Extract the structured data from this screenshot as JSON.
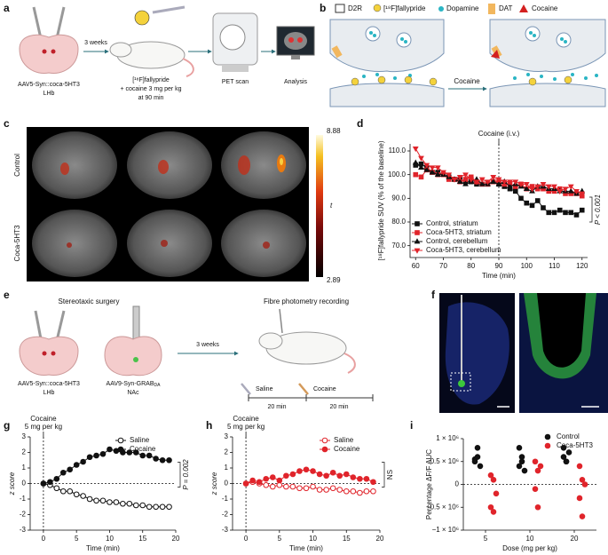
{
  "figure": {
    "panel_labels": [
      "a",
      "b",
      "c",
      "d",
      "e",
      "f",
      "g",
      "h",
      "i"
    ]
  },
  "panel_a": {
    "step": "3 weeks",
    "virus": "AAV5-Syn::coca-5HT3",
    "region": "LHb",
    "tracer": "[¹⁸F]fallypride",
    "dose": "+ cocaine 3 mg per kg",
    "timing": "at 90 min",
    "scan": "PET scan",
    "analysis": "Analysis"
  },
  "panel_b": {
    "legend": [
      "D2R",
      "[¹⁸F]fallypride",
      "Dopamine",
      "DAT",
      "Cocaine"
    ],
    "arrow": "Cocaine"
  },
  "panel_c": {
    "rows": [
      "Control",
      "Coca-5HT3"
    ],
    "colorbar_max": "8.88",
    "colorbar_min": "2.89",
    "colorbar_label": "t"
  },
  "panel_e": {
    "surgery": "Stereotaxic surgery",
    "recording": "Fibre photometry recording",
    "step": "3 weeks",
    "virus1": "AAV5-Syn::coca-5HT3",
    "region1": "LHb",
    "virus2": "AAV9-Syn-GRAB",
    "virus2_sub": "DA",
    "region2": "NAc",
    "injections": [
      "Saline",
      "Cocaine"
    ],
    "durations": [
      "20 min",
      "20 min"
    ]
  },
  "chart_data": [
    {
      "type": "line",
      "xlabel": "Time (min)",
      "ylabel": "[¹⁸F]fallypride SUV (% of the baseline)",
      "x": [
        60,
        62,
        64,
        66,
        68,
        70,
        72,
        74,
        76,
        78,
        80,
        82,
        84,
        86,
        88,
        90,
        92,
        94,
        96,
        98,
        100,
        102,
        104,
        106,
        108,
        110,
        112,
        114,
        116,
        118,
        120
      ],
      "xlim": [
        58,
        122
      ],
      "xticks": [
        60,
        70,
        80,
        90,
        100,
        110,
        120
      ],
      "ylim": [
        65,
        113
      ],
      "yticks": [
        {
          "value": 70,
          "label": "70.0"
        },
        {
          "value": 80,
          "label": "80.0"
        },
        {
          "value": 90,
          "label": "90.0"
        },
        {
          "value": 100,
          "label": "100.0"
        },
        {
          "value": 110,
          "label": "110.0"
        }
      ],
      "vline": 90,
      "vline_label": [
        "Cocaine (i.v.)"
      ],
      "stat_label": "P < 0.001",
      "legend": "lower left",
      "series": [
        {
          "name": "Control, striatum",
          "color": "#111111",
          "marker": "square",
          "filled": true,
          "values": [
            104,
            104.5,
            103,
            101,
            101,
            100,
            99,
            98,
            98,
            97,
            97,
            96,
            96,
            96,
            97,
            96,
            95,
            94,
            93,
            90,
            88,
            87,
            89,
            86,
            84,
            84,
            85,
            84,
            84,
            83,
            85
          ]
        },
        {
          "name": "Coca-5HT3, striatum",
          "color": "#e0242b",
          "marker": "square",
          "filled": true,
          "values": [
            100,
            99,
            102,
            101,
            100,
            100,
            98,
            98,
            97,
            98,
            99,
            97,
            96,
            96,
            97,
            97,
            96,
            96,
            95,
            96,
            94,
            95,
            94,
            94,
            93,
            93,
            94,
            92,
            92,
            92,
            91
          ]
        },
        {
          "name": "Control, cerebellum",
          "color": "#111111",
          "marker": "triangle",
          "filled": true,
          "values": [
            105,
            103,
            102,
            101,
            100,
            100,
            99,
            98,
            97,
            96,
            97,
            98,
            96,
            96,
            97,
            96,
            97,
            95,
            96,
            95,
            94,
            93,
            95,
            95,
            94,
            94,
            93,
            93,
            93,
            92,
            93
          ]
        },
        {
          "name": "Coca-5HT3, cerebellum",
          "color": "#e0242b",
          "marker": "triangle-down",
          "filled": true,
          "values": [
            111,
            107,
            104,
            103,
            103,
            101,
            100,
            98,
            99,
            100,
            98,
            97,
            98,
            97,
            99,
            98,
            97,
            97,
            97,
            96,
            96,
            94,
            95,
            96,
            95,
            95,
            93,
            94,
            95,
            93,
            92
          ]
        }
      ]
    },
    {
      "type": "line",
      "xlabel": "Time (min)",
      "ylabel": "z score",
      "x": [
        0,
        1,
        2,
        3,
        4,
        5,
        6,
        7,
        8,
        9,
        10,
        11,
        12,
        13,
        14,
        15,
        16,
        17,
        18,
        19
      ],
      "xlim": [
        -2,
        20
      ],
      "xticks": [
        0,
        5,
        10,
        15,
        20
      ],
      "ylim": [
        -3,
        3
      ],
      "yticks": [
        -3,
        -2,
        -1,
        0,
        1,
        2,
        3
      ],
      "hline": 0,
      "vline": 0,
      "vline_label": [
        "Cocaine",
        "5 mg per kg"
      ],
      "stat_label": "P = 0.002",
      "legend": "upper right",
      "series": [
        {
          "name": "Saline",
          "color": "#111111",
          "marker": "circle",
          "filled": false,
          "values": [
            0,
            -0.1,
            -0.3,
            -0.5,
            -0.5,
            -0.7,
            -0.8,
            -1.0,
            -1.1,
            -1.1,
            -1.2,
            -1.2,
            -1.3,
            -1.3,
            -1.4,
            -1.4,
            -1.5,
            -1.5,
            -1.5,
            -1.5
          ]
        },
        {
          "name": "Cocaine",
          "color": "#111111",
          "marker": "circle",
          "filled": true,
          "values": [
            0,
            0.1,
            0.3,
            0.7,
            0.9,
            1.2,
            1.4,
            1.7,
            1.8,
            1.9,
            2.2,
            2.1,
            2.0,
            2.0,
            2.0,
            1.8,
            1.8,
            1.6,
            1.5,
            1.5
          ]
        }
      ]
    },
    {
      "type": "line",
      "xlabel": "Time (min)",
      "ylabel": "z score",
      "x": [
        0,
        1,
        2,
        3,
        4,
        5,
        6,
        7,
        8,
        9,
        10,
        11,
        12,
        13,
        14,
        15,
        16,
        17,
        18,
        19
      ],
      "xlim": [
        -2,
        20
      ],
      "xticks": [
        0,
        5,
        10,
        15,
        20
      ],
      "ylim": [
        -3,
        3
      ],
      "yticks": [
        -3,
        -2,
        -1,
        0,
        1,
        2,
        3
      ],
      "hline": 0,
      "vline": 0,
      "vline_label": [
        "Cocaine",
        "5 mg per kg"
      ],
      "stat_label": "NS",
      "legend": "upper right",
      "series": [
        {
          "name": "Saline",
          "color": "#e0242b",
          "marker": "circle",
          "filled": false,
          "values": [
            0,
            0.1,
            0.0,
            -0.1,
            -0.2,
            -0.1,
            -0.2,
            -0.2,
            -0.3,
            -0.3,
            -0.2,
            -0.4,
            -0.4,
            -0.3,
            -0.4,
            -0.5,
            -0.5,
            -0.6,
            -0.5,
            -0.5
          ]
        },
        {
          "name": "Cocaine",
          "color": "#e0242b",
          "marker": "circle",
          "filled": true,
          "values": [
            0,
            0.2,
            0.1,
            0.3,
            0.4,
            0.2,
            0.5,
            0.6,
            0.8,
            0.9,
            0.8,
            0.6,
            0.5,
            0.7,
            0.5,
            0.6,
            0.4,
            0.3,
            0.3,
            0.1
          ]
        }
      ]
    },
    {
      "type": "scatter",
      "xlabel": "Dose (mg per kg)",
      "ylabel": "Percentage ΔF/F AUC",
      "categories": [
        5,
        10,
        20
      ],
      "ylim": [
        -1000000,
        1000000
      ],
      "yticks": [
        {
          "value": -1000000,
          "label": "−1 × 10⁶"
        },
        {
          "value": -500000,
          "label": "−0.5 × 10⁶"
        },
        0,
        {
          "value": 500000,
          "label": "0.5 × 10⁶"
        },
        {
          "value": 1000000,
          "label": "1 × 10⁶"
        }
      ],
      "hline": 0,
      "legend": "upper right",
      "series": [
        {
          "name": "Control",
          "color": "#111111",
          "marker": "circle",
          "filled": true,
          "values": [
            [
              550000,
              600000,
              400000,
              500000,
              800000
            ],
            [
              400000,
              500000,
              300000,
              800000,
              600000
            ],
            [
              600000,
              500000,
              700000,
              800000,
              500000
            ]
          ]
        },
        {
          "name": "Coca-5HT3",
          "color": "#e0242b",
          "marker": "circle",
          "filled": true,
          "values": [
            [
              200000,
              100000,
              -200000,
              -500000,
              -600000
            ],
            [
              500000,
              300000,
              400000,
              -100000,
              -500000
            ],
            [
              400000,
              100000,
              0,
              -300000,
              -700000
            ]
          ]
        }
      ]
    }
  ]
}
